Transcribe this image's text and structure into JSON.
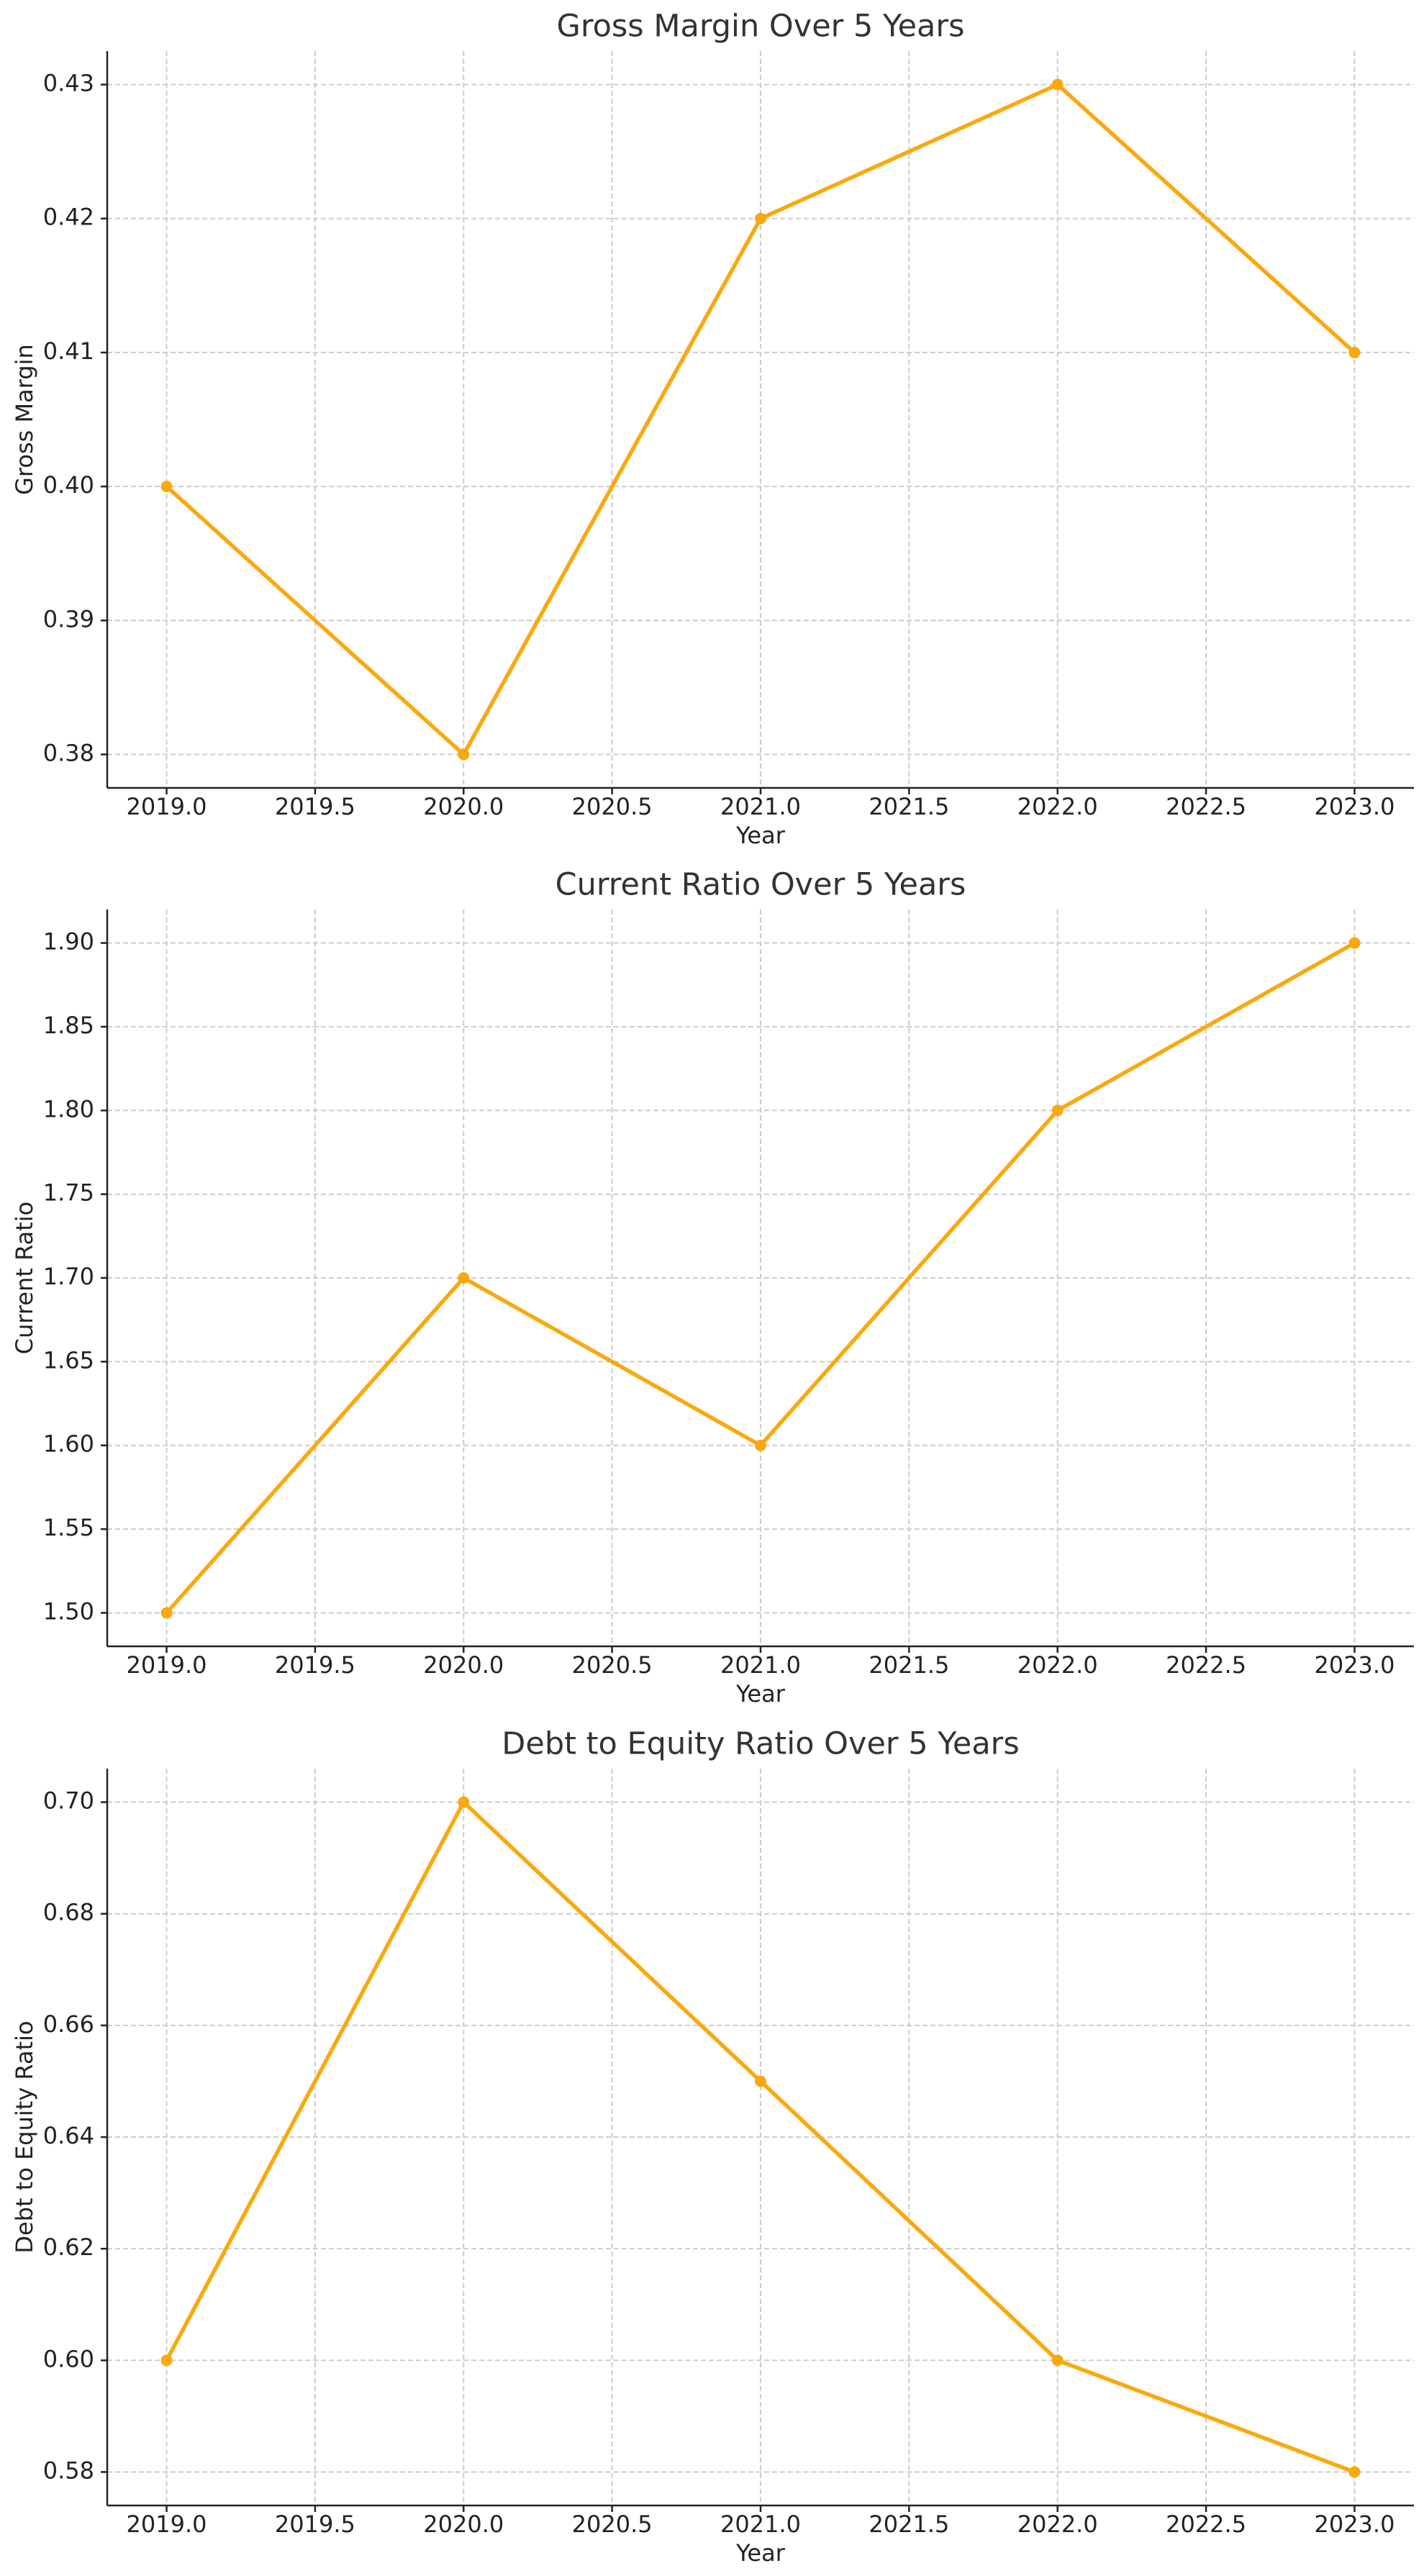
{
  "chart_data": [
    {
      "type": "line",
      "title": "Gross Margin Over 5 Years",
      "x_label": "Year",
      "y_label": "Gross Margin",
      "x": [
        2019,
        2020,
        2021,
        2022,
        2023
      ],
      "values": [
        0.4,
        0.38,
        0.42,
        0.43,
        0.41
      ],
      "color": "#f9a90f",
      "xlim": [
        2018.8,
        2023.2
      ],
      "xticks": [
        {
          "value": 2019,
          "label": "2019.0"
        },
        {
          "value": 2019.5,
          "label": "2019.5"
        },
        {
          "value": 2020,
          "label": "2020.0"
        },
        {
          "value": 2020.5,
          "label": "2020.5"
        },
        {
          "value": 2021,
          "label": "2021.0"
        },
        {
          "value": 2021.5,
          "label": "2021.5"
        },
        {
          "value": 2022,
          "label": "2022.0"
        },
        {
          "value": 2022.5,
          "label": "2022.5"
        },
        {
          "value": 2023,
          "label": "2023.0"
        }
      ],
      "ylim": [
        0.3775,
        0.4325
      ],
      "yticks": [
        0.38,
        0.39,
        {
          "value": 0.4,
          "label": "0.40"
        },
        0.41,
        0.42,
        0.43
      ],
      "grid": true
    },
    {
      "type": "line",
      "title": "Current Ratio Over 5 Years",
      "x_label": "Year",
      "y_label": "Current Ratio",
      "x": [
        2019,
        2020,
        2021,
        2022,
        2023
      ],
      "values": [
        1.5,
        1.7,
        1.6,
        1.8,
        1.9
      ],
      "color": "#f9a90f",
      "xlim": [
        2018.8,
        2023.2
      ],
      "xticks": [
        {
          "value": 2019,
          "label": "2019.0"
        },
        {
          "value": 2019.5,
          "label": "2019.5"
        },
        {
          "value": 2020,
          "label": "2020.0"
        },
        {
          "value": 2020.5,
          "label": "2020.5"
        },
        {
          "value": 2021,
          "label": "2021.0"
        },
        {
          "value": 2021.5,
          "label": "2021.5"
        },
        {
          "value": 2022,
          "label": "2022.0"
        },
        {
          "value": 2022.5,
          "label": "2022.5"
        },
        {
          "value": 2023,
          "label": "2023.0"
        }
      ],
      "ylim": [
        1.48,
        1.92
      ],
      "yticks": [
        {
          "value": 1.5,
          "label": "1.50"
        },
        1.55,
        {
          "value": 1.6,
          "label": "1.60"
        },
        1.65,
        {
          "value": 1.7,
          "label": "1.70"
        },
        1.75,
        {
          "value": 1.8,
          "label": "1.80"
        },
        1.85,
        {
          "value": 1.9,
          "label": "1.90"
        }
      ],
      "grid": true
    },
    {
      "type": "line",
      "title": "Debt to Equity Ratio Over 5 Years",
      "x_label": "Year",
      "y_label": "Debt to Equity Ratio",
      "x": [
        2019,
        2020,
        2021,
        2022,
        2023
      ],
      "values": [
        0.6,
        0.7,
        0.65,
        0.6,
        0.58
      ],
      "color": "#f9a90f",
      "xlim": [
        2018.8,
        2023.2
      ],
      "xticks": [
        {
          "value": 2019,
          "label": "2019.0"
        },
        {
          "value": 2019.5,
          "label": "2019.5"
        },
        {
          "value": 2020,
          "label": "2020.0"
        },
        {
          "value": 2020.5,
          "label": "2020.5"
        },
        {
          "value": 2021,
          "label": "2021.0"
        },
        {
          "value": 2021.5,
          "label": "2021.5"
        },
        {
          "value": 2022,
          "label": "2022.0"
        },
        {
          "value": 2022.5,
          "label": "2022.5"
        },
        {
          "value": 2023,
          "label": "2023.0"
        }
      ],
      "ylim": [
        0.574,
        0.706
      ],
      "yticks": [
        0.58,
        {
          "value": 0.6,
          "label": "0.60"
        },
        0.62,
        0.64,
        0.66,
        0.68,
        {
          "value": 0.7,
          "label": "0.70"
        }
      ],
      "grid": true
    }
  ]
}
